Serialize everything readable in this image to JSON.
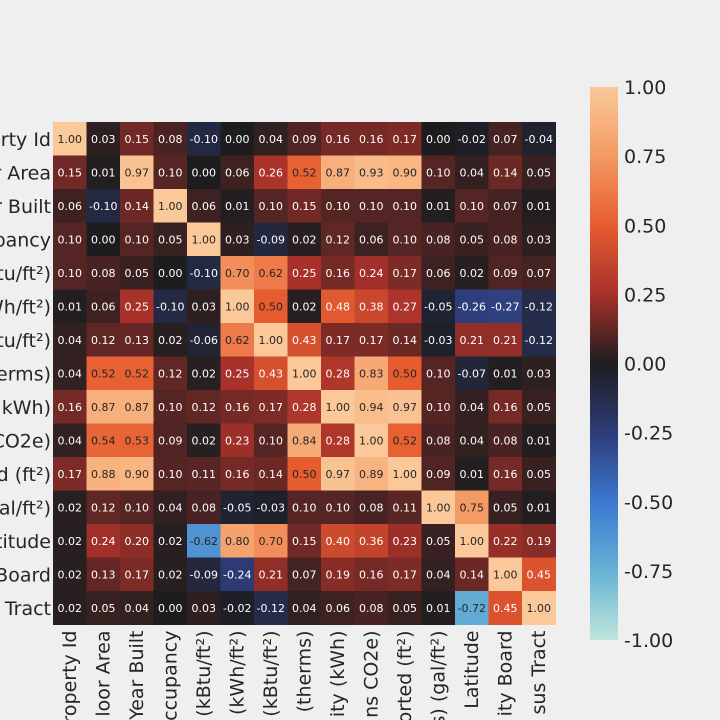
{
  "chart_data": {
    "type": "heatmap",
    "title": "",
    "vmin": -1.0,
    "vmax": 1.0,
    "row_labels": [
      "erty Id",
      "r Area",
      "r Built",
      "pancy",
      "Btu/ft²)",
      "Wh/ft²)",
      "Btu/ft²)",
      "terms)",
      "(kWh)",
      "CO2e)",
      "d (ft²)",
      "gal/ft²)",
      "titude",
      "Board",
      "Tract"
    ],
    "col_labels": [
      "roperty Id",
      "loor Area",
      "Year Built",
      "ccupancy",
      "(kBtu/ft²)",
      "(kWh/ft²)",
      "(kBtu/ft²)",
      "(therms)",
      "ity (kWh)",
      "ns CO2e)",
      "orted (ft²)",
      "s) (gal/ft²)",
      "Latitude",
      "ity Board",
      "sus Tract"
    ],
    "colorbar_ticks": [
      "1.00",
      "0.75",
      "0.50",
      "0.25",
      "0.00",
      "-0.25",
      "-0.50",
      "-0.75",
      "-1.00"
    ],
    "matrix": [
      [
        1.0,
        0.03,
        0.15,
        0.08,
        -0.1,
        0.0,
        0.04,
        0.09,
        0.16,
        0.16,
        0.17,
        0.0,
        -0.02,
        0.07,
        -0.04
      ],
      [
        0.15,
        0.01,
        0.97,
        0.1,
        0.0,
        0.06,
        0.26,
        0.52,
        0.87,
        0.93,
        0.9,
        0.1,
        0.04,
        0.14,
        0.05
      ],
      [
        0.06,
        -0.1,
        0.14,
        1.0,
        0.06,
        0.01,
        0.1,
        0.15,
        0.1,
        0.1,
        0.1,
        0.01,
        0.1,
        0.07,
        0.01
      ],
      [
        0.1,
        0.0,
        0.1,
        0.05,
        1.0,
        0.03,
        -0.09,
        0.02,
        0.12,
        0.06,
        0.1,
        0.08,
        0.05,
        0.08,
        0.03
      ],
      [
        0.1,
        0.08,
        0.05,
        0.0,
        -0.1,
        0.7,
        0.62,
        0.25,
        0.16,
        0.24,
        0.17,
        0.06,
        0.02,
        0.09,
        0.07
      ],
      [
        0.01,
        0.06,
        0.25,
        -0.1,
        0.03,
        1.0,
        0.5,
        0.02,
        0.48,
        0.38,
        0.27,
        -0.05,
        -0.26,
        -0.27,
        -0.12
      ],
      [
        0.04,
        0.12,
        0.13,
        0.02,
        -0.06,
        0.62,
        1.0,
        0.43,
        0.17,
        0.17,
        0.14,
        -0.03,
        0.21,
        0.21,
        -0.12
      ],
      [
        0.04,
        0.52,
        0.52,
        0.12,
        0.02,
        0.25,
        0.43,
        1.0,
        0.28,
        0.83,
        0.5,
        0.1,
        -0.07,
        0.01,
        0.03
      ],
      [
        0.16,
        0.87,
        0.87,
        0.1,
        0.12,
        0.16,
        0.17,
        0.28,
        1.0,
        0.94,
        0.97,
        0.1,
        0.04,
        0.16,
        0.05
      ],
      [
        0.04,
        0.54,
        0.53,
        0.09,
        0.02,
        0.23,
        0.1,
        0.84,
        0.28,
        1.0,
        0.52,
        0.08,
        0.04,
        0.08,
        0.01
      ],
      [
        0.17,
        0.88,
        0.9,
        0.1,
        0.11,
        0.16,
        0.14,
        0.5,
        0.97,
        0.89,
        1.0,
        0.09,
        0.01,
        0.16,
        0.05
      ],
      [
        0.02,
        0.12,
        0.1,
        0.04,
        0.08,
        -0.05,
        -0.03,
        0.1,
        0.1,
        0.08,
        0.11,
        1.0,
        0.75,
        0.05,
        0.01
      ],
      [
        0.02,
        0.24,
        0.2,
        0.02,
        -0.62,
        0.8,
        0.7,
        0.15,
        0.4,
        0.36,
        0.23,
        0.05,
        1.0,
        0.22,
        0.19
      ],
      [
        0.02,
        0.13,
        0.17,
        0.02,
        -0.09,
        -0.24,
        0.21,
        0.07,
        0.19,
        0.16,
        0.17,
        0.04,
        0.14,
        1.0,
        0.45
      ],
      [
        0.02,
        0.05,
        0.04,
        0.0,
        0.03,
        -0.02,
        -0.12,
        0.04,
        0.06,
        0.08,
        0.05,
        0.01,
        -0.72,
        0.45,
        1.0
      ]
    ]
  }
}
